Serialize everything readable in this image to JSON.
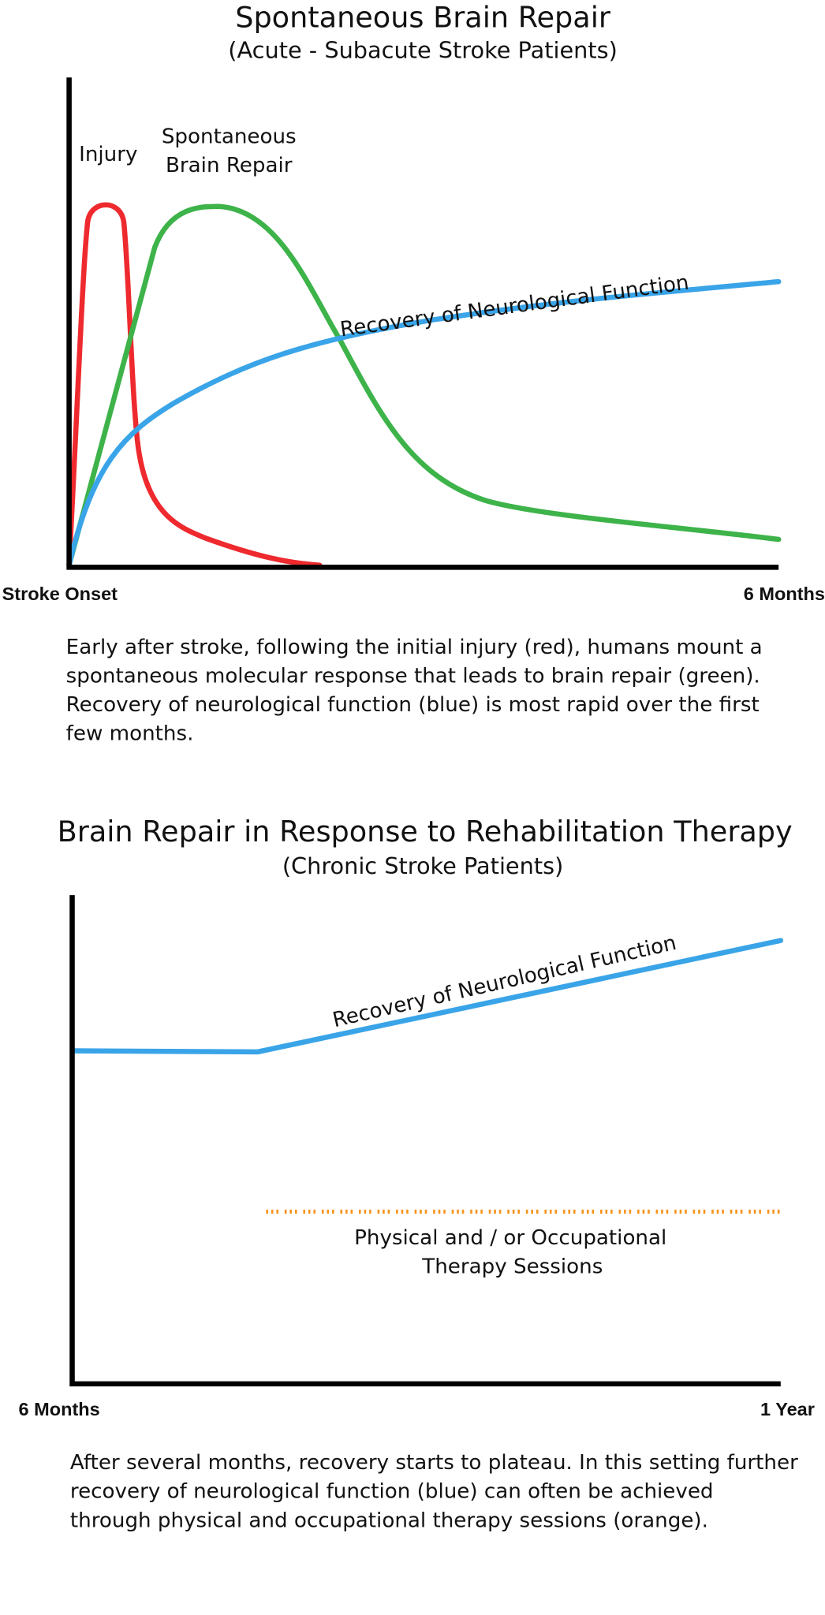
{
  "top": {
    "title": "Spontaneous Brain Repair",
    "subtitle": "(Acute - Subacute Stroke Patients)",
    "injury_label": "Injury",
    "repair_label": [
      "Spontaneous",
      "Brain Repair"
    ],
    "curve_label": "Recovery of Neurological Function",
    "x_start": "Stroke Onset",
    "x_end": "6 Months",
    "caption": [
      "Early after stroke, following the initial injury (red), humans mount a",
      "spontaneous molecular response that leads to brain repair (green).",
      "Recovery of neurological function (blue) is most rapid over the first",
      "few months."
    ]
  },
  "bottom": {
    "title": "Brain Repair in Response to Rehabilitation Therapy",
    "subtitle": "(Chronic Stroke Patients)",
    "curve_label": "Recovery of Neurological Function",
    "therapy_label": [
      "Physical and / or Occupational",
      "Therapy Sessions"
    ],
    "x_start": "6 Months",
    "x_end": "1 Year",
    "caption": [
      "After several months, recovery starts to plateau.  In this setting further",
      "recovery of neurological function (blue) can often be achieved",
      "through physical and occupational therapy sessions (orange)."
    ]
  }
}
